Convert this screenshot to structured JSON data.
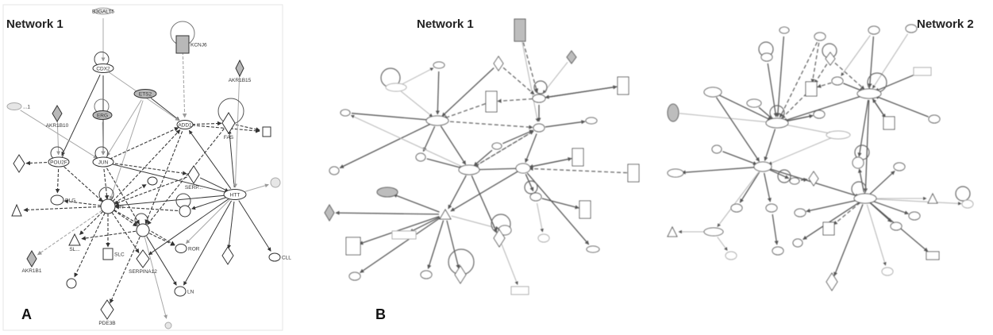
{
  "panels": {
    "a": {
      "letter": "A",
      "title": "Network 1"
    },
    "b": {
      "letter": "B",
      "title_left": "Network 1",
      "title_right": "Network 2"
    }
  },
  "network_a": {
    "nodes": [
      {
        "id": "B3GALT5",
        "label": "B3GALT5",
        "shape": "ellipse",
        "shade": "pale"
      },
      {
        "id": "KCNJ6",
        "label": "KCNJ6",
        "shape": "rect",
        "shade": "gray"
      },
      {
        "id": "AKR1B15",
        "label": "AKR1B15",
        "shape": "diamond",
        "shade": "gray"
      },
      {
        "id": "CDX2",
        "label": "CDX2",
        "shape": "ellipse",
        "shade": "white"
      },
      {
        "id": "ETS2",
        "label": "ETS2",
        "shape": "ellipse",
        "shade": "gray"
      },
      {
        "id": "ERG",
        "label": "ERG",
        "shape": "ellipse",
        "shade": "gray"
      },
      {
        "id": "AKR1B10",
        "label": "AKR1B10",
        "shape": "diamond",
        "shade": "gray"
      },
      {
        "id": "N1",
        "label": "...1",
        "shape": "ellipse",
        "shade": "pale"
      },
      {
        "id": "ADD1",
        "label": "ADD1",
        "shape": "ellipse",
        "shade": "white"
      },
      {
        "id": "FAS",
        "label": "FAS",
        "shape": "diamond",
        "shade": "white"
      },
      {
        "id": "RN",
        "label": "",
        "shape": "rect",
        "shade": "white"
      },
      {
        "id": "POU2F",
        "label": "POU2F",
        "shape": "ellipse",
        "shade": "white"
      },
      {
        "id": "JUN",
        "label": "JUN",
        "shape": "ellipse",
        "shade": "white"
      },
      {
        "id": "LEFT1",
        "label": "",
        "shape": "diamond",
        "shade": "white"
      },
      {
        "id": "SERP",
        "label": "SERP...",
        "shape": "diamond",
        "shade": "white"
      },
      {
        "id": "HTT",
        "label": "HTT",
        "shape": "ellipse",
        "shade": "white"
      },
      {
        "id": "RIGHT1",
        "label": "",
        "shape": "ellipse",
        "shade": "pale"
      },
      {
        "id": "DLG",
        "label": "DLG",
        "shape": "ellipse",
        "shade": "white"
      },
      {
        "id": "TN",
        "label": "TN",
        "shape": "ellipse",
        "shade": "white"
      },
      {
        "id": "LEFT2",
        "label": "",
        "shape": "triangle",
        "shade": "white"
      },
      {
        "id": "ELF",
        "label": "",
        "shape": "ellipse",
        "shade": "white"
      },
      {
        "id": "PCDH",
        "label": "",
        "shape": "ellipse",
        "shade": "white"
      },
      {
        "id": "MID",
        "label": "",
        "shape": "ellipse",
        "shade": "white"
      },
      {
        "id": "SLC",
        "label": "SL...",
        "shape": "triangle",
        "shade": "white"
      },
      {
        "id": "SL2",
        "label": "SLC",
        "shape": "rect",
        "shade": "white"
      },
      {
        "id": "SERPINA12",
        "label": "SERPINA12",
        "shape": "diamond",
        "shade": "white"
      },
      {
        "id": "ROR",
        "label": "ROR",
        "shape": "ellipse",
        "shade": "white"
      },
      {
        "id": "AKR1B1",
        "label": "AKR1B1",
        "shape": "diamond",
        "shade": "gray"
      },
      {
        "id": "LN",
        "label": "LN",
        "shape": "ellipse",
        "shade": "white"
      },
      {
        "id": "PDE3B",
        "label": "PDE3B",
        "shape": "diamond",
        "shade": "white"
      },
      {
        "id": "CLL",
        "label": "CLL",
        "shape": "ellipse",
        "shade": "white"
      },
      {
        "id": "UN",
        "label": "",
        "shape": "ellipse",
        "shade": "white"
      },
      {
        "id": "DIA",
        "label": "",
        "shape": "diamond",
        "shade": "white"
      },
      {
        "id": "BOT",
        "label": "",
        "shape": "ellipse",
        "shade": "pale"
      }
    ]
  }
}
